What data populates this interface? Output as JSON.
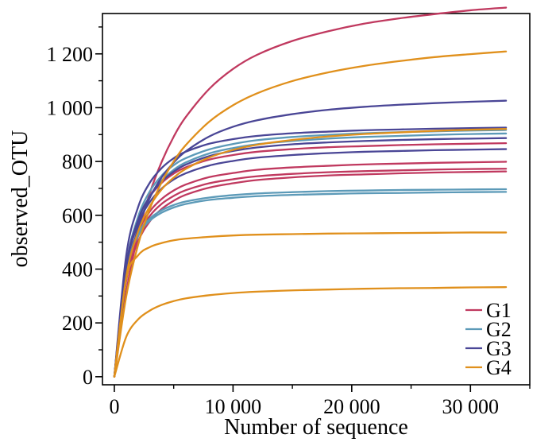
{
  "chart_data": {
    "type": "line",
    "title": "",
    "xlabel": "Number of sequence",
    "ylabel": "observed_OTU",
    "xlim": [
      -1000,
      35000
    ],
    "ylim": [
      -30,
      1350
    ],
    "x_ticks": [
      0,
      10000,
      20000,
      30000
    ],
    "x_tick_labels": [
      "0",
      "10 000",
      "20 000",
      "30 000"
    ],
    "y_ticks": [
      0,
      200,
      400,
      600,
      800,
      1000,
      1200
    ],
    "y_tick_labels": [
      "0",
      "200",
      "400",
      "600",
      "800",
      "1 000",
      "1 200"
    ],
    "grid": false,
    "legend_position": "bottom-right",
    "colors": {
      "G1": "#c0395f",
      "G2": "#5c9ab8",
      "G3": "#4a4696",
      "G4": "#e0901c"
    },
    "x": [
      0,
      1000,
      2000,
      3000,
      4000,
      5000,
      6000,
      8000,
      10000,
      12000,
      15000,
      18000,
      21000,
      24000,
      27000,
      30000,
      33000
    ],
    "series": [
      {
        "name": "G1",
        "values": [
          0,
          313,
          529,
          684,
          800,
          892,
          964,
          1070,
          1144,
          1196,
          1248,
          1284,
          1312,
          1332,
          1348,
          1362,
          1372
        ]
      },
      {
        "name": "G1",
        "values": [
          0,
          413,
          582,
          670,
          721,
          755,
          778,
          807,
          824,
          836,
          846,
          853,
          857,
          861,
          864,
          866,
          868
        ]
      },
      {
        "name": "G1",
        "values": [
          0,
          380,
          535,
          615,
          661,
          692,
          714,
          742,
          757,
          769,
          778,
          784,
          789,
          792,
          795,
          797,
          799
        ]
      },
      {
        "name": "G1",
        "values": [
          0,
          372,
          522,
          598,
          643,
          672,
          693,
          719,
          734,
          745,
          754,
          760,
          764,
          767,
          770,
          772,
          773
        ]
      },
      {
        "name": "G1",
        "values": [
          0,
          356,
          502,
          578,
          624,
          654,
          676,
          703,
          719,
          731,
          741,
          748,
          752,
          756,
          759,
          761,
          763
        ]
      },
      {
        "name": "G2",
        "values": [
          0,
          413,
          594,
          690,
          748,
          786,
          812,
          845,
          865,
          879,
          891,
          899,
          905,
          909,
          912,
          915,
          917
        ]
      },
      {
        "name": "G2",
        "values": [
          0,
          399,
          577,
          672,
          730,
          769,
          796,
          830,
          850,
          864,
          876,
          885,
          891,
          895,
          899,
          902,
          904
        ]
      },
      {
        "name": "G2",
        "values": [
          0,
          403,
          532,
          588,
          619,
          638,
          651,
          666,
          675,
          681,
          686,
          690,
          692,
          694,
          695,
          696,
          697
        ]
      },
      {
        "name": "G2",
        "values": [
          0,
          396,
          524,
          580,
          610,
          629,
          642,
          657,
          665,
          671,
          676,
          679,
          682,
          683,
          685,
          686,
          687
        ]
      },
      {
        "name": "G3",
        "values": [
          0,
          364,
          552,
          666,
          742,
          796,
          837,
          893,
          929,
          953,
          976,
          992,
          1003,
          1011,
          1017,
          1022,
          1026
        ]
      },
      {
        "name": "G3",
        "values": [
          0,
          450,
          630,
          722,
          776,
          812,
          836,
          866,
          883,
          895,
          905,
          911,
          916,
          919,
          922,
          924,
          926
        ]
      },
      {
        "name": "G3",
        "values": [
          0,
          411,
          582,
          671,
          726,
          762,
          788,
          820,
          839,
          852,
          864,
          871,
          876,
          880,
          883,
          885,
          887
        ]
      },
      {
        "name": "G3",
        "values": [
          0,
          404,
          567,
          650,
          700,
          733,
          756,
          785,
          802,
          814,
          824,
          831,
          836,
          839,
          842,
          844,
          846
        ]
      },
      {
        "name": "G4",
        "values": [
          0,
          298,
          490,
          625,
          724,
          800,
          860,
          948,
          1009,
          1053,
          1099,
          1131,
          1155,
          1173,
          1188,
          1199,
          1209
        ]
      },
      {
        "name": "G4",
        "values": [
          0,
          370,
          539,
          634,
          697,
          740,
          772,
          815,
          843,
          862,
          880,
          893,
          902,
          908,
          914,
          918,
          921
        ]
      },
      {
        "name": "G4",
        "values": [
          0,
          363,
          451,
          482,
          497,
          507,
          513,
          520,
          525,
          528,
          530,
          532,
          533,
          534,
          535,
          536,
          536
        ]
      },
      {
        "name": "G4",
        "values": [
          0,
          148,
          213,
          246,
          267,
          281,
          291,
          303,
          311,
          316,
          321,
          324,
          327,
          329,
          330,
          332,
          333
        ]
      }
    ],
    "legend": [
      {
        "name": "G1",
        "color": "#c0395f"
      },
      {
        "name": "G2",
        "color": "#5c9ab8"
      },
      {
        "name": "G3",
        "color": "#4a4696"
      },
      {
        "name": "G4",
        "color": "#e0901c"
      }
    ]
  }
}
